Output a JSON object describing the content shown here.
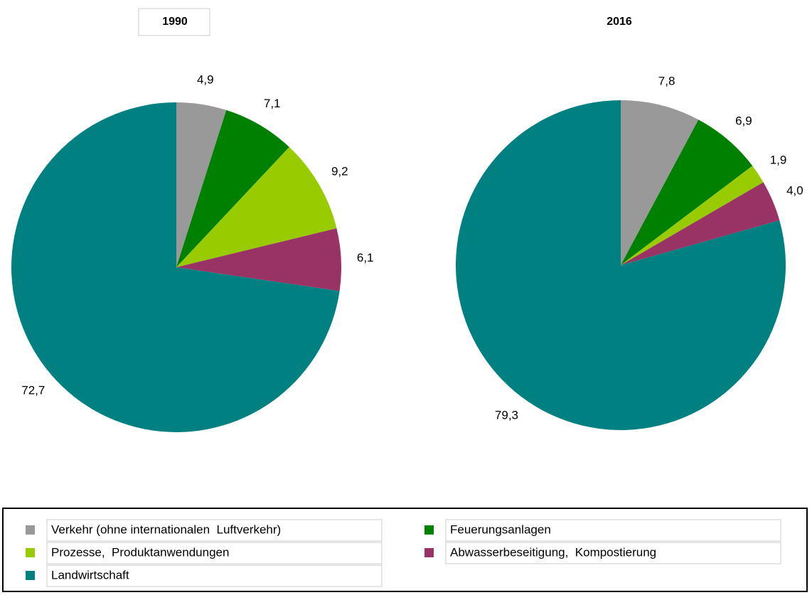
{
  "chart_data": [
    {
      "type": "pie",
      "title": "1990",
      "values": [
        4.9,
        7.1,
        9.2,
        6.1,
        72.7
      ],
      "value_labels": [
        "4,9",
        "7,1",
        "9,2",
        "6,1",
        "72,7"
      ]
    },
    {
      "type": "pie",
      "title": "2016",
      "values": [
        7.8,
        6.9,
        1.9,
        4.0,
        79.3
      ],
      "value_labels": [
        "7,8",
        "6,9",
        "1,9",
        "4,0",
        "79,3"
      ]
    }
  ],
  "legend": {
    "labels": [
      "Verkehr (ohne internationalen  Luftverkehr)",
      "Feuerungsanlagen",
      "Prozesse,  Produktanwendungen",
      "Abwasserbeseitigung,  Kompostierung",
      "Landwirtschaft"
    ],
    "colors": [
      "#999999",
      "#008000",
      "#99cc00",
      "#993366",
      "#008080"
    ]
  }
}
